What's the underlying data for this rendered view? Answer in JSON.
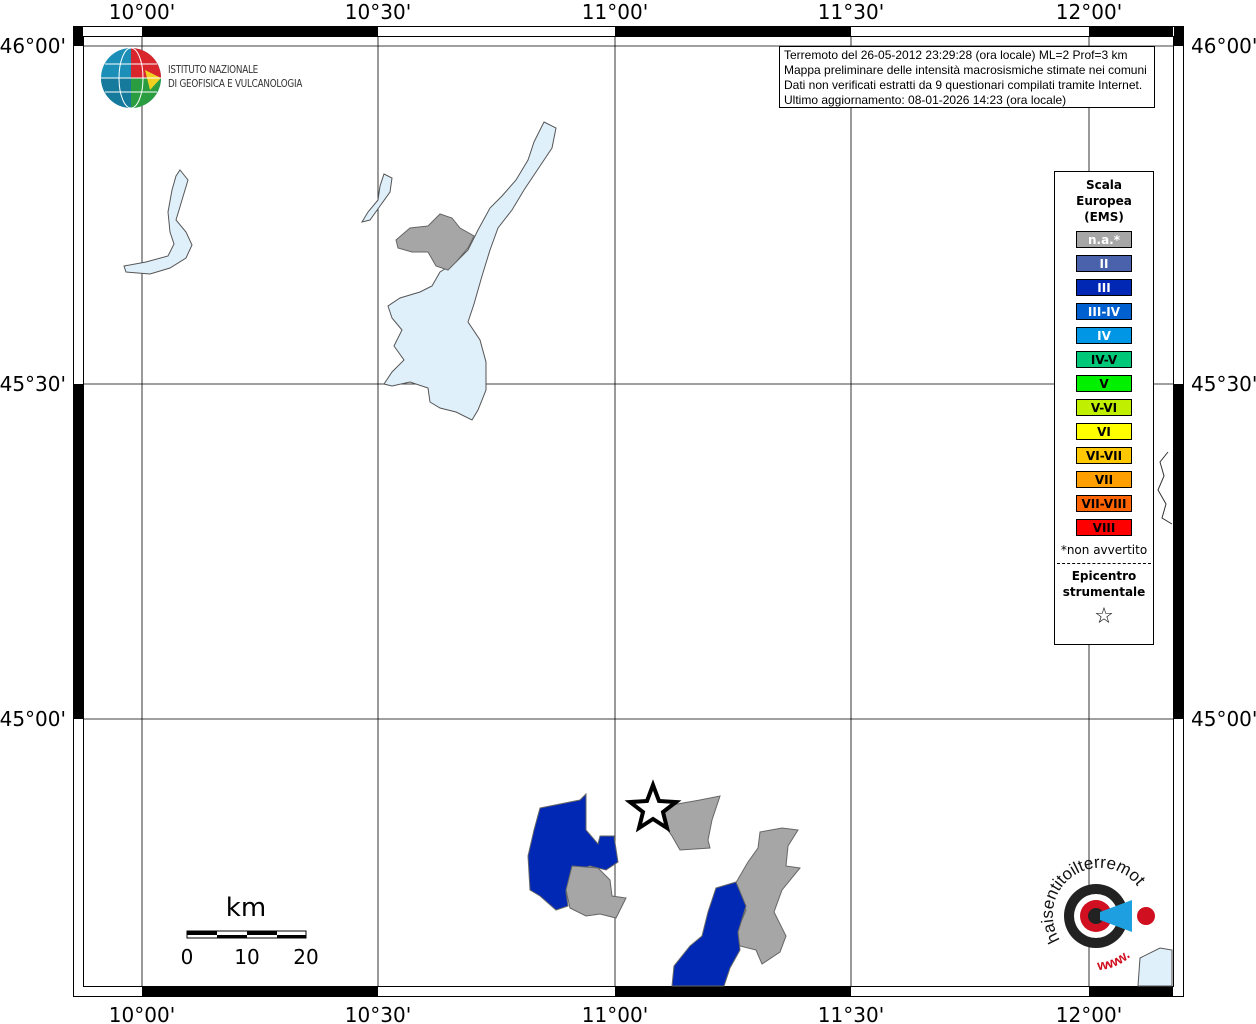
{
  "map": {
    "lon_labels": [
      "10°00'",
      "10°30'",
      "11°00'",
      "11°30'",
      "12°00'"
    ],
    "lat_labels": [
      "46°00'",
      "45°30'",
      "45°00'"
    ],
    "epicenter_icon": "star-icon",
    "colors": {
      "lake": "#e0f0fb",
      "na": "#a6a6a6",
      "III": "#0028b4"
    }
  },
  "logo": {
    "line1": "ISTITUTO NAZIONALE",
    "line2": "DI GEOFISICA E VULCANOLOGIA"
  },
  "info": {
    "lines": [
      "Terremoto del 26-05-2012 23:29:28 (ora locale) ML=2 Prof=3 km",
      "Mappa preliminare delle intensità macrosismiche stimate nei comuni",
      "Dati non verificati estratti da 9 questionari compilati tramite Internet.",
      "Ultimo aggiornamento: 08-01-2026 14:23 (ora locale)"
    ]
  },
  "legend": {
    "title": [
      "Scala",
      "Europea",
      "(EMS)"
    ],
    "items": [
      {
        "label": "n.a.*",
        "color": "#a6a6a6",
        "text": "#fff"
      },
      {
        "label": "II",
        "color": "#4a62ac",
        "text": "#fff"
      },
      {
        "label": "III",
        "color": "#0028b4",
        "text": "#fff"
      },
      {
        "label": "III-IV",
        "color": "#0060d0",
        "text": "#fff"
      },
      {
        "label": "IV",
        "color": "#0096e6",
        "text": "#fff"
      },
      {
        "label": "IV-V",
        "color": "#00c878",
        "text": "#000"
      },
      {
        "label": "V",
        "color": "#00f000",
        "text": "#000"
      },
      {
        "label": "V-VI",
        "color": "#c0f000",
        "text": "#000"
      },
      {
        "label": "VI",
        "color": "#ffff00",
        "text": "#000"
      },
      {
        "label": "VI-VII",
        "color": "#ffc800",
        "text": "#000"
      },
      {
        "label": "VII",
        "color": "#ffa000",
        "text": "#000"
      },
      {
        "label": "VII-VIII",
        "color": "#ff6400",
        "text": "#000"
      },
      {
        "label": "VIII",
        "color": "#ff0000",
        "text": "#000"
      }
    ],
    "note": "*non avvertito",
    "epicenter": [
      "Epicentro",
      "strumentale"
    ],
    "star": "☆"
  },
  "scalebar": {
    "unit": "km",
    "ticks": [
      "0",
      "10",
      "20"
    ]
  },
  "brand": {
    "text": "haisentitoilterremoto.it",
    "www": "www."
  }
}
